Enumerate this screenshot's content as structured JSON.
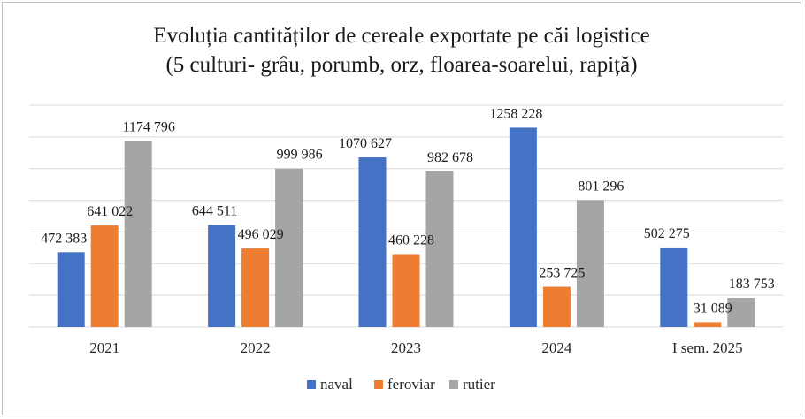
{
  "chart_data": {
    "type": "bar",
    "title_lines": [
      "Evoluția cantităților de cereale exportate pe căi logistice",
      "(5 culturi- grâu, porumb, orz, floarea-soarelui, rapiță)"
    ],
    "categories": [
      "2021",
      "2022",
      "2023",
      "2024",
      "I sem. 2025"
    ],
    "series": [
      {
        "name": "naval",
        "color": "#4472c4",
        "values": [
          472383,
          644511,
          1070627,
          1258228,
          502275
        ],
        "labels": [
          "472 383",
          "644 511",
          "1070 627",
          "1258 228",
          "502 275"
        ]
      },
      {
        "name": "feroviar",
        "color": "#ed7d31",
        "values": [
          641022,
          496029,
          460228,
          253725,
          31089
        ],
        "labels": [
          "641 022",
          "496 029",
          "460 228",
          "253 725",
          "31 089"
        ]
      },
      {
        "name": "rutier",
        "color": "#a5a5a5",
        "values": [
          1174796,
          999986,
          982678,
          801296,
          183753
        ],
        "labels": [
          "1174 796",
          "999 986",
          "982 678",
          "801 296",
          "183 753"
        ]
      }
    ],
    "ylim": [
      0,
      1400000
    ],
    "gridline_step": 200000,
    "grid": true,
    "legend_position": "bottom",
    "gridline_color": "#d9d9d9"
  }
}
